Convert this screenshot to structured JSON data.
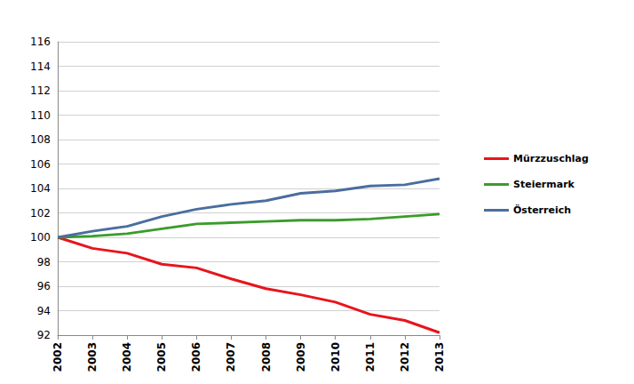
{
  "chart_data": {
    "type": "line",
    "categories": [
      "2002",
      "2003",
      "2004",
      "2005",
      "2006",
      "2007",
      "2008",
      "2009",
      "2010",
      "2011",
      "2012",
      "2013"
    ],
    "series": [
      {
        "name": "Mürzzuschlag",
        "color": "#e8141c",
        "values": [
          100,
          99.1,
          98.7,
          97.8,
          97.5,
          96.6,
          95.8,
          95.3,
          94.7,
          93.7,
          93.2,
          92.2
        ]
      },
      {
        "name": "Steiermark",
        "color": "#3a9c2a",
        "values": [
          100,
          100.1,
          100.3,
          100.7,
          101.1,
          101.2,
          101.3,
          101.4,
          101.4,
          101.5,
          101.7,
          101.9
        ]
      },
      {
        "name": "Österreich",
        "color": "#4a6e9e",
        "values": [
          100,
          100.5,
          100.9,
          101.7,
          102.3,
          102.7,
          103.0,
          103.6,
          103.8,
          104.2,
          104.3,
          104.8
        ]
      }
    ],
    "ylim": [
      92,
      116
    ],
    "yticks": [
      92,
      94,
      96,
      98,
      100,
      102,
      104,
      106,
      108,
      110,
      112,
      114,
      116
    ],
    "grid": true,
    "legend": "right"
  }
}
